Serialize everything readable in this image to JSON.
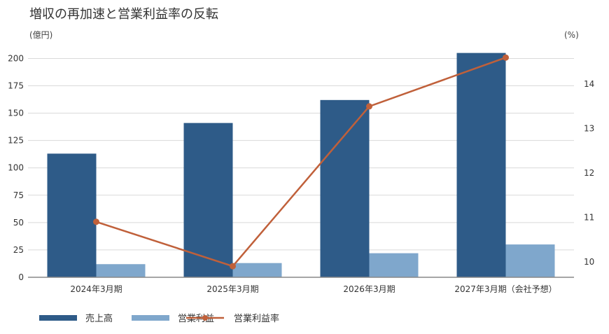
{
  "chart_data": {
    "type": "bar",
    "title": "増収の再加速と営業利益率の反転",
    "y_unit": "(億円)",
    "y2_unit": "(%)",
    "categories": [
      "2024年3月期",
      "2025年3月期",
      "2026年3月期",
      "2027年3月期（会社予想）"
    ],
    "series": [
      {
        "name": "売上高",
        "kind": "bar",
        "axis": "left",
        "color": "#2e5b88",
        "values": [
          113,
          141,
          162,
          205
        ]
      },
      {
        "name": "営業利益",
        "kind": "bar",
        "axis": "left",
        "color": "#7fa7cc",
        "values": [
          12,
          13,
          22,
          30
        ]
      },
      {
        "name": "営業利益率",
        "kind": "line",
        "axis": "right",
        "color": "#c0603a",
        "values": [
          10.9,
          9.9,
          13.5,
          14.6
        ]
      }
    ],
    "y_ticks": [
      "0",
      "25",
      "50",
      "75",
      "100",
      "125",
      "150",
      "175",
      "200"
    ],
    "ylim": [
      0,
      215
    ],
    "y2_ticks": [
      "10",
      "11",
      "12",
      "13",
      "14"
    ],
    "y2lim": [
      9.65,
      14.95
    ],
    "grid": true,
    "legend_position": "bottom-left"
  }
}
